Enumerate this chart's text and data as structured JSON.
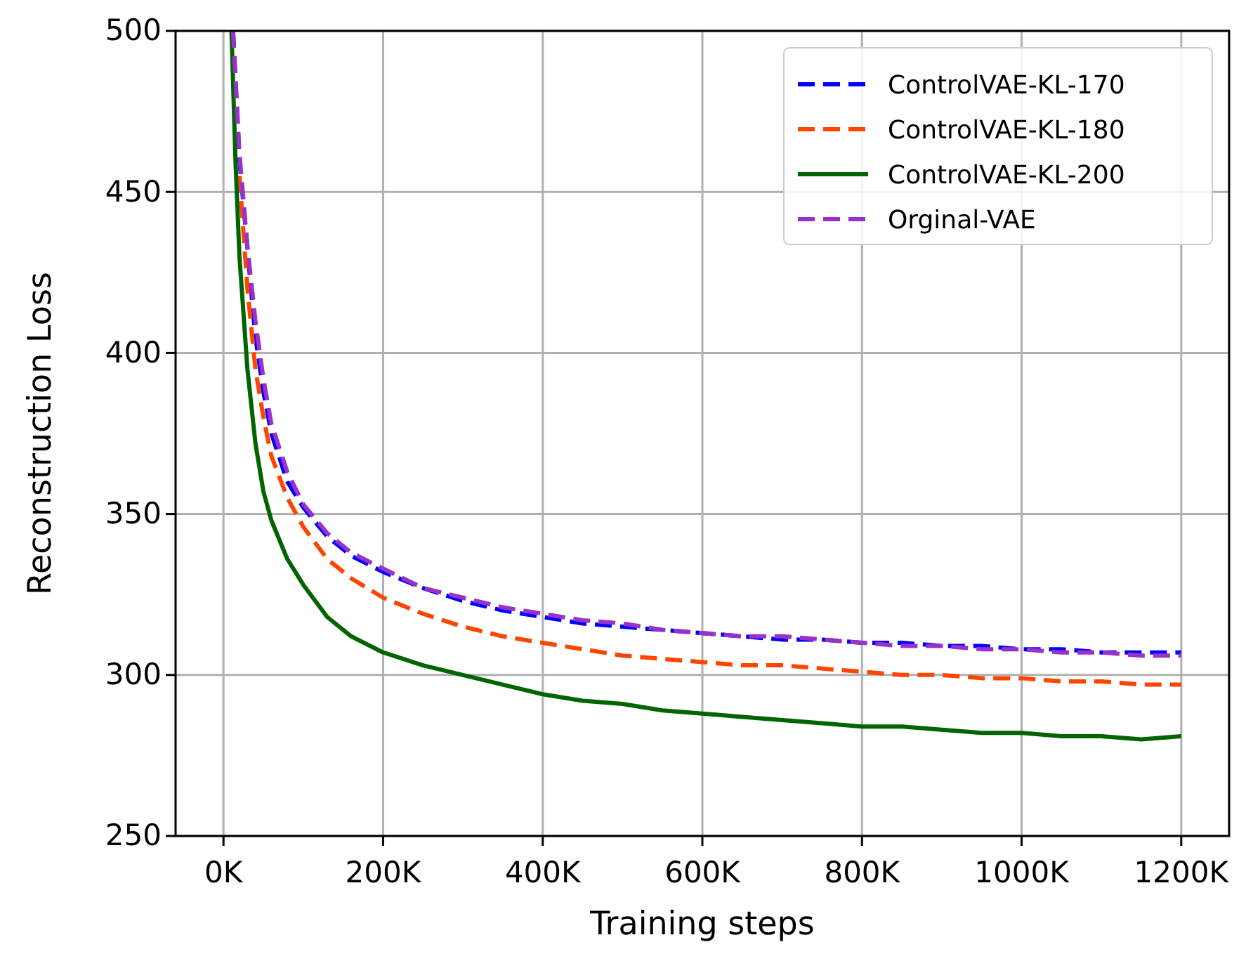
{
  "chart_data": {
    "type": "line",
    "xlabel": "Training steps",
    "ylabel": "Reconstruction Loss",
    "xlim": [
      -60000,
      1260000
    ],
    "xticks": [
      {
        "value": 0,
        "label": "0K"
      },
      {
        "value": 200000,
        "label": "200K"
      },
      {
        "value": 400000,
        "label": "400K"
      },
      {
        "value": 600000,
        "label": "600K"
      },
      {
        "value": 800000,
        "label": "800K"
      },
      {
        "value": 1000000,
        "label": "1000K"
      },
      {
        "value": 1200000,
        "label": "1200K"
      }
    ],
    "ylim": [
      250,
      500
    ],
    "yticks": [
      250,
      300,
      350,
      400,
      450,
      500
    ],
    "grid": true,
    "legend": "top right",
    "series": [
      {
        "name": "ControlVAE-KL-170",
        "color": "#0000ff",
        "line_style": "dashed",
        "x": [
          12000,
          20000,
          40000,
          50000,
          60000,
          80000,
          100000,
          130000,
          160000,
          200000,
          250000,
          300000,
          350000,
          400000,
          450000,
          500000,
          550000,
          600000,
          650000,
          700000,
          750000,
          800000,
          850000,
          900000,
          950000,
          1000000,
          1050000,
          1100000,
          1150000,
          1200000
        ],
        "values": [
          500,
          460,
          405,
          388,
          375,
          360,
          352,
          343,
          337,
          332,
          327,
          323,
          320,
          318,
          316,
          315,
          314,
          313,
          312,
          311,
          311,
          310,
          310,
          309,
          309,
          308,
          308,
          307,
          307,
          307
        ]
      },
      {
        "name": "ControlVAE-KL-180",
        "color": "#ff4500",
        "line_style": "dashed",
        "x": [
          20000,
          30000,
          40000,
          50000,
          60000,
          80000,
          100000,
          130000,
          160000,
          200000,
          250000,
          300000,
          350000,
          400000,
          450000,
          500000,
          550000,
          600000,
          650000,
          700000,
          750000,
          800000,
          850000,
          900000,
          950000,
          1000000,
          1050000,
          1100000,
          1150000,
          1200000
        ],
        "values": [
          455,
          420,
          395,
          380,
          368,
          355,
          346,
          336,
          330,
          324,
          319,
          315,
          312,
          310,
          308,
          306,
          305,
          304,
          303,
          303,
          302,
          301,
          300,
          300,
          299,
          299,
          298,
          298,
          297,
          297
        ]
      },
      {
        "name": "ControlVAE-KL-200",
        "color": "#006400",
        "line_style": "solid",
        "x": [
          10000,
          15000,
          20000,
          30000,
          40000,
          50000,
          60000,
          80000,
          100000,
          130000,
          160000,
          200000,
          250000,
          300000,
          350000,
          400000,
          450000,
          500000,
          550000,
          600000,
          650000,
          700000,
          750000,
          800000,
          850000,
          900000,
          950000,
          1000000,
          1050000,
          1100000,
          1150000,
          1200000
        ],
        "values": [
          500,
          460,
          430,
          395,
          372,
          357,
          348,
          336,
          328,
          318,
          312,
          307,
          303,
          300,
          297,
          294,
          292,
          291,
          289,
          288,
          287,
          286,
          285,
          284,
          284,
          283,
          282,
          282,
          281,
          281,
          280,
          281
        ]
      },
      {
        "name": "Orginal-VAE",
        "color": "#9932cc",
        "line_style": "dashed",
        "x": [
          12000,
          20000,
          30000,
          40000,
          50000,
          60000,
          80000,
          100000,
          130000,
          160000,
          200000,
          250000,
          300000,
          350000,
          400000,
          450000,
          500000,
          550000,
          600000,
          650000,
          700000,
          750000,
          800000,
          850000,
          900000,
          950000,
          1000000,
          1050000,
          1100000,
          1150000,
          1200000
        ],
        "values": [
          500,
          462,
          433,
          410,
          392,
          378,
          363,
          353,
          344,
          338,
          333,
          327,
          324,
          321,
          319,
          317,
          316,
          314,
          313,
          312,
          312,
          311,
          310,
          309,
          309,
          308,
          308,
          307,
          307,
          306,
          306
        ]
      }
    ]
  }
}
